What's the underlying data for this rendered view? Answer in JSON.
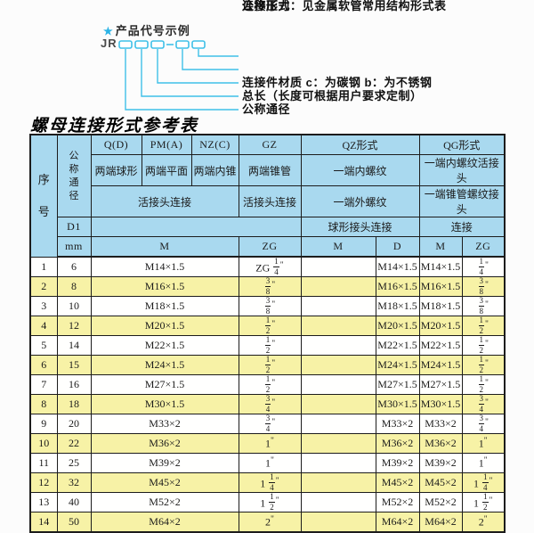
{
  "accent_color": "#3fc0e8",
  "diagram": {
    "star": "★",
    "heading": "产品代号示例",
    "code_prefix": "JR",
    "labels": [
      "连接件材质   c：为碳钢   b：为不锈钢",
      "总长（长度可根据用户要求定制）",
      "公称通径",
      "公称压力",
      "连接形式：见金属软管常用结构形式表"
    ]
  },
  "section_title": "螺母连接形式参考表",
  "table": {
    "colors": {
      "header_bg": "#a9d9ef",
      "row_alt_bg": "#f7f2a6",
      "row_bg": "#ffffff",
      "border": "#1c1c1c"
    },
    "header": {
      "seq": "序号",
      "dia": "公称通径",
      "d1": "D1",
      "mm": "mm",
      "groups": [
        "Q(D)",
        "PM(A)",
        "NZ(C)",
        "GZ",
        "QZ形式",
        "QG形式"
      ],
      "row2": [
        "两端球形",
        "两端平面",
        "两端内锥",
        "两端锥管",
        "一端内螺纹",
        "一端内螺纹活接头"
      ],
      "row3": [
        "活接头连接",
        "活接头连接",
        "一端外螺纹",
        "一端锥管螺纹接头"
      ],
      "row4": [
        "球形接头连接",
        "连接"
      ],
      "row5": [
        "M",
        "ZG",
        "M",
        "D",
        "M",
        "ZG"
      ]
    },
    "rows": [
      [
        "1",
        "6",
        "M14×1.5",
        "ZG 1/4\"",
        "",
        "M14×1.5",
        "M14×1.5",
        "1/4\""
      ],
      [
        "2",
        "8",
        "M16×1.5",
        "3/8\"",
        "",
        "M16×1.5",
        "M16×1.5",
        "3/8\""
      ],
      [
        "3",
        "10",
        "M18×1.5",
        "3/8\"",
        "",
        "M18×1.5",
        "M18×1.5",
        "3/8\""
      ],
      [
        "4",
        "12",
        "M20×1.5",
        "1/2\"",
        "",
        "M20×1.5",
        "M20×1.5",
        "1/2\""
      ],
      [
        "5",
        "14",
        "M22×1.5",
        "1/2\"",
        "",
        "M22×1.5",
        "M22×1.5",
        "1/2\""
      ],
      [
        "6",
        "15",
        "M24×1.5",
        "1/2\"",
        "",
        "M24×1.5",
        "M24×1.5",
        "1/2\""
      ],
      [
        "7",
        "16",
        "M27×1.5",
        "1/2\"",
        "",
        "M27×1.5",
        "M27×1.5",
        "1/2\""
      ],
      [
        "8",
        "18",
        "M30×1.5",
        "3/4\"",
        "",
        "M30×1.5",
        "M30×1.5",
        "3/4\""
      ],
      [
        "9",
        "20",
        "M33×2",
        "3/4\"",
        "",
        "M33×2",
        "M33×2",
        "3/4\""
      ],
      [
        "10",
        "22",
        "M36×2",
        "1\"",
        "",
        "M36×2",
        "M36×2",
        "1\""
      ],
      [
        "11",
        "25",
        "M39×2",
        "1\"",
        "",
        "M39×2",
        "M39×2",
        "1\""
      ],
      [
        "12",
        "32",
        "M45×2",
        "1 1/4\"",
        "",
        "M45×2",
        "M45×2",
        "1 1/4\""
      ],
      [
        "13",
        "40",
        "M52×2",
        "1 1/2\"",
        "",
        "M52×2",
        "M52×2",
        "1 1/2\""
      ],
      [
        "14",
        "50",
        "M64×2",
        "2\"",
        "",
        "M64×2",
        "M64×2",
        "2\""
      ]
    ]
  }
}
